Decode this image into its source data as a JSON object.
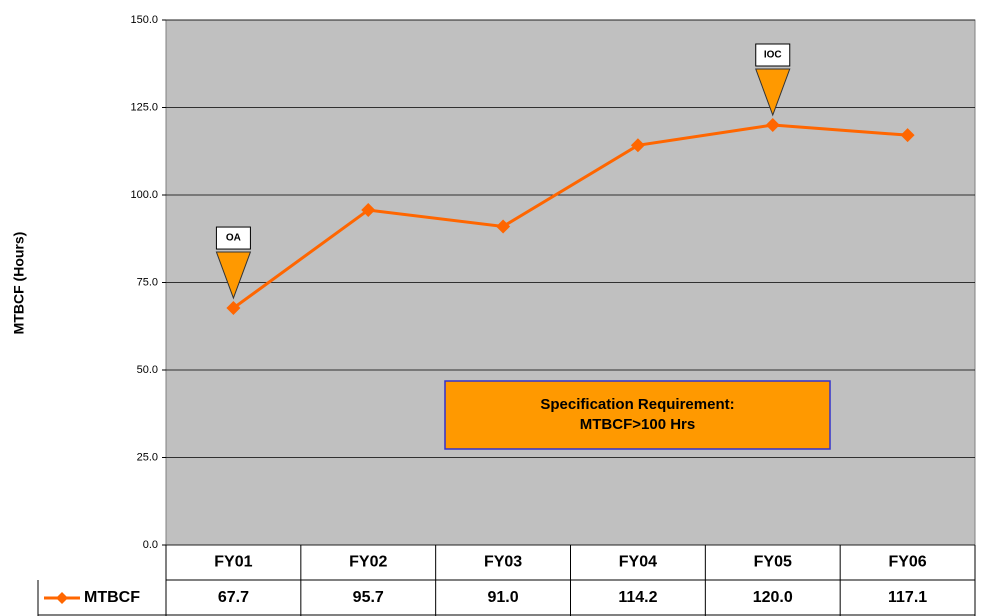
{
  "chart_data": {
    "type": "line",
    "y_label": "MTBCF (Hours)",
    "categories": [
      "FY01",
      "FY02",
      "FY03",
      "FY04",
      "FY05",
      "FY06"
    ],
    "series": [
      {
        "name": "MTBCF",
        "color": "#ff6600",
        "values": [
          67.7,
          95.7,
          91.0,
          114.2,
          120.0,
          117.1
        ],
        "value_labels": [
          "67.7",
          "95.7",
          "91.0",
          "114.2",
          "120.0",
          "117.1"
        ]
      }
    ],
    "ylim": [
      0,
      150
    ],
    "yticks": [
      {
        "value": 0,
        "label": "0.0"
      },
      {
        "value": 25,
        "label": "25.0"
      },
      {
        "value": 50,
        "label": "50.0"
      },
      {
        "value": 75,
        "label": "75.0"
      },
      {
        "value": 100,
        "label": "100.0"
      },
      {
        "value": 125,
        "label": "125.0"
      },
      {
        "value": 150,
        "label": "150.0"
      }
    ],
    "grid": true,
    "annotations": [
      {
        "text": "OA",
        "category": "FY01"
      },
      {
        "text": "IOC",
        "category": "FY05"
      }
    ],
    "note": [
      "Specification Requirement:",
      "MTBCF>100 Hrs"
    ]
  }
}
